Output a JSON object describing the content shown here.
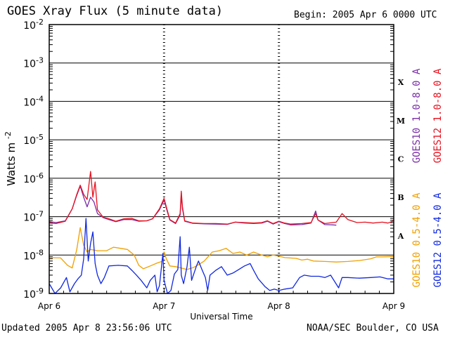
{
  "header": {
    "title": "GOES Xray Flux (5 minute data)",
    "begin": "Begin:  2005 Apr 6 0000 UTC"
  },
  "footer": {
    "updated": "Updated 2005 Apr  8 23:56:06 UTC",
    "credit": "NOAA/SEC Boulder, CO USA"
  },
  "chart_data": {
    "type": "line",
    "title": "GOES Xray Flux (5 minute data)",
    "xlabel": "Universal Time",
    "ylabel": "Watts m",
    "ylabel_sup": "-2",
    "y_scale": "log",
    "ylim": [
      1e-09,
      0.01
    ],
    "y_ticks": [
      {
        "value": 0.01,
        "exp": "-2"
      },
      {
        "value": 0.001,
        "exp": "-3"
      },
      {
        "value": 0.0001,
        "exp": "-4"
      },
      {
        "value": 1e-05,
        "exp": "-5"
      },
      {
        "value": 1e-06,
        "exp": "-6"
      },
      {
        "value": 1e-07,
        "exp": "-7"
      },
      {
        "value": 1e-08,
        "exp": "-8"
      },
      {
        "value": 1e-09,
        "exp": "-9"
      }
    ],
    "xlim": [
      0,
      3
    ],
    "x_ticks": [
      {
        "day": 0,
        "label": "Apr 6"
      },
      {
        "day": 1,
        "label": "Apr 7"
      },
      {
        "day": 2,
        "label": "Apr 8"
      },
      {
        "day": 3,
        "label": "Apr 9"
      }
    ],
    "flare_classes": [
      {
        "label": "X",
        "lo": 0.0001,
        "hi": 0.001
      },
      {
        "label": "M",
        "lo": 1e-05,
        "hi": 0.0001
      },
      {
        "label": "C",
        "lo": 1e-06,
        "hi": 1e-05
      },
      {
        "label": "B",
        "lo": 1e-07,
        "hi": 1e-06
      },
      {
        "label": "A",
        "lo": 1e-08,
        "hi": 1e-07
      }
    ],
    "legend_long": [
      {
        "name": "GOES10 1.0-8.0 A",
        "color": "#7a2ea8"
      },
      {
        "name": "GOES12 1.0-8.0 A",
        "color": "#e8101e"
      }
    ],
    "legend_short": [
      {
        "name": "GOES10 0.5-4.0 A",
        "color": "#f0a000"
      },
      {
        "name": "GOES12 0.5-4.0 A",
        "color": "#1028e0"
      }
    ],
    "series": [
      {
        "name": "GOES10 1.0-8.0 A",
        "color": "#7a2ea8",
        "points": [
          [
            0,
            7.4e-08
          ],
          [
            0.06,
            7e-08
          ],
          [
            0.14,
            7.8e-08
          ],
          [
            0.2,
            1.6e-07
          ],
          [
            0.24,
            3.6e-07
          ],
          [
            0.27,
            6.2e-07
          ],
          [
            0.3,
            3.2e-07
          ],
          [
            0.33,
            1.8e-07
          ],
          [
            0.36,
            3.2e-07
          ],
          [
            0.39,
            2.4e-07
          ],
          [
            0.42,
            1.2e-07
          ],
          [
            0.47,
            9.4e-08
          ],
          [
            0.52,
            8.4e-08
          ],
          [
            0.58,
            7.4e-08
          ],
          [
            0.65,
            8.4e-08
          ],
          [
            0.72,
            8.4e-08
          ],
          [
            0.78,
            7.6e-08
          ],
          [
            0.85,
            7.8e-08
          ],
          [
            0.9,
            8.8e-08
          ],
          [
            0.96,
            1.5e-07
          ],
          [
            1.0,
            2.7e-07
          ],
          [
            1.03,
            1.3e-07
          ],
          [
            1.05,
            8.2e-08
          ],
          [
            1.1,
            6.6e-08
          ],
          [
            1.14,
            1.1e-07
          ],
          [
            1.15,
            3.6e-07
          ],
          [
            1.16,
            1.6e-07
          ],
          [
            1.18,
            7.6e-08
          ],
          [
            1.25,
            6.7e-08
          ],
          [
            1.35,
            6.5e-08
          ],
          [
            1.45,
            6.4e-08
          ],
          [
            1.55,
            6.3e-08
          ],
          [
            1.62,
            7.2e-08
          ],
          [
            1.7,
            6.8e-08
          ],
          [
            1.78,
            6.6e-08
          ],
          [
            1.85,
            6.8e-08
          ],
          [
            1.9,
            7.6e-08
          ],
          [
            1.95,
            6.4e-08
          ],
          [
            2.0,
            7.4e-08
          ],
          [
            2.05,
            6.6e-08
          ],
          [
            2.1,
            6.1e-08
          ],
          [
            2.2,
            6.2e-08
          ],
          [
            2.28,
            6.8e-08
          ],
          [
            2.32,
            1.4e-07
          ],
          [
            2.34,
            8.2e-08
          ],
          [
            2.4,
            6.2e-08
          ],
          [
            2.47,
            6.1e-08
          ],
          [
            2.5,
            6e-08
          ]
        ]
      },
      {
        "name": "GOES12 1.0-8.0 A",
        "color": "#e8101e",
        "points": [
          [
            0,
            6.8e-08
          ],
          [
            0.06,
            6.6e-08
          ],
          [
            0.14,
            7.6e-08
          ],
          [
            0.2,
            1.6e-07
          ],
          [
            0.24,
            3.8e-07
          ],
          [
            0.27,
            6.6e-07
          ],
          [
            0.3,
            3.8e-07
          ],
          [
            0.33,
            2.8e-07
          ],
          [
            0.36,
            1.5e-06
          ],
          [
            0.38,
            3.2e-07
          ],
          [
            0.4,
            8e-07
          ],
          [
            0.42,
            1.5e-07
          ],
          [
            0.47,
            9.6e-08
          ],
          [
            0.52,
            8.8e-08
          ],
          [
            0.58,
            7.6e-08
          ],
          [
            0.65,
            8.8e-08
          ],
          [
            0.72,
            9e-08
          ],
          [
            0.78,
            7.8e-08
          ],
          [
            0.85,
            7.8e-08
          ],
          [
            0.9,
            8.8e-08
          ],
          [
            0.96,
            1.6e-07
          ],
          [
            1.0,
            3e-07
          ],
          [
            1.03,
            1.4e-07
          ],
          [
            1.05,
            8.4e-08
          ],
          [
            1.1,
            6.8e-08
          ],
          [
            1.14,
            1.2e-07
          ],
          [
            1.15,
            4.6e-07
          ],
          [
            1.16,
            1.8e-07
          ],
          [
            1.18,
            7.8e-08
          ],
          [
            1.25,
            6.8e-08
          ],
          [
            1.35,
            6.6e-08
          ],
          [
            1.45,
            6.6e-08
          ],
          [
            1.55,
            6.4e-08
          ],
          [
            1.62,
            7.2e-08
          ],
          [
            1.7,
            7e-08
          ],
          [
            1.78,
            6.8e-08
          ],
          [
            1.85,
            7e-08
          ],
          [
            1.9,
            7.8e-08
          ],
          [
            1.95,
            6.6e-08
          ],
          [
            2.0,
            7.6e-08
          ],
          [
            2.05,
            6.8e-08
          ],
          [
            2.1,
            6.4e-08
          ],
          [
            2.2,
            6.6e-08
          ],
          [
            2.28,
            7e-08
          ],
          [
            2.32,
            1.2e-07
          ],
          [
            2.34,
            8.2e-08
          ],
          [
            2.4,
            6.6e-08
          ],
          [
            2.5,
            7.2e-08
          ],
          [
            2.55,
            1.2e-07
          ],
          [
            2.6,
            8.4e-08
          ],
          [
            2.68,
            7e-08
          ],
          [
            2.75,
            7.2e-08
          ],
          [
            2.82,
            6.8e-08
          ],
          [
            2.9,
            7.2e-08
          ],
          [
            2.95,
            6.8e-08
          ],
          [
            3.0,
            7.8e-08
          ]
        ]
      },
      {
        "name": "GOES10 0.5-4.0 A",
        "color": "#f0a000",
        "points": [
          [
            0,
            8.6e-09
          ],
          [
            0.1,
            8.4e-09
          ],
          [
            0.16,
            5.4e-09
          ],
          [
            0.2,
            4.6e-09
          ],
          [
            0.24,
            1.4e-08
          ],
          [
            0.27,
            5.2e-08
          ],
          [
            0.3,
            1.8e-08
          ],
          [
            0.33,
            1.2e-08
          ],
          [
            0.36,
            1.4e-08
          ],
          [
            0.42,
            1.3e-08
          ],
          [
            0.5,
            1.3e-08
          ],
          [
            0.56,
            1.6e-08
          ],
          [
            0.62,
            1.5e-08
          ],
          [
            0.68,
            1.4e-08
          ],
          [
            0.74,
            1e-08
          ],
          [
            0.78,
            5.4e-09
          ],
          [
            0.82,
            4.4e-09
          ],
          [
            0.88,
            5.2e-09
          ],
          [
            0.94,
            6.2e-09
          ],
          [
            0.98,
            6.8e-09
          ],
          [
            1.0,
            1.2e-08
          ],
          [
            1.02,
            8e-09
          ],
          [
            1.05,
            5.2e-09
          ],
          [
            1.1,
            5e-09
          ],
          [
            1.15,
            4.6e-09
          ],
          [
            1.2,
            4.2e-09
          ],
          [
            1.26,
            4.8e-09
          ],
          [
            1.3,
            5.6e-09
          ],
          [
            1.35,
            7e-09
          ],
          [
            1.42,
            1.2e-08
          ],
          [
            1.48,
            1.3e-08
          ],
          [
            1.54,
            1.5e-08
          ],
          [
            1.6,
            1.1e-08
          ],
          [
            1.66,
            1.2e-08
          ],
          [
            1.72,
            1e-08
          ],
          [
            1.78,
            1.2e-08
          ],
          [
            1.85,
            1e-08
          ],
          [
            1.9,
            9e-09
          ],
          [
            1.95,
            1e-08
          ],
          [
            2.0,
            9.4e-09
          ],
          [
            2.05,
            8.6e-09
          ],
          [
            2.15,
            8.2e-09
          ],
          [
            2.2,
            7.4e-09
          ],
          [
            2.25,
            7.8e-09
          ],
          [
            2.3,
            7e-09
          ],
          [
            2.4,
            6.8e-09
          ],
          [
            2.5,
            6.6e-09
          ],
          [
            2.6,
            6.8e-09
          ],
          [
            2.7,
            7.2e-09
          ],
          [
            2.8,
            8e-09
          ],
          [
            2.85,
            9e-09
          ],
          [
            2.9,
            9e-09
          ],
          [
            3.0,
            9.2e-09
          ]
        ]
      },
      {
        "name": "GOES12 0.5-4.0 A",
        "color": "#1028e0",
        "points": [
          [
            0,
            1.8e-09
          ],
          [
            0.05,
            1e-09
          ],
          [
            0.1,
            1.4e-09
          ],
          [
            0.15,
            2.6e-09
          ],
          [
            0.18,
            1.1e-09
          ],
          [
            0.22,
            1.8e-09
          ],
          [
            0.25,
            2.4e-09
          ],
          [
            0.28,
            3e-09
          ],
          [
            0.3,
            8e-09
          ],
          [
            0.32,
            9e-08
          ],
          [
            0.34,
            7e-09
          ],
          [
            0.36,
            2e-08
          ],
          [
            0.38,
            4e-08
          ],
          [
            0.4,
            6e-09
          ],
          [
            0.42,
            3e-09
          ],
          [
            0.45,
            1.8e-09
          ],
          [
            0.48,
            2.6e-09
          ],
          [
            0.52,
            5.2e-09
          ],
          [
            0.6,
            5.4e-09
          ],
          [
            0.68,
            5.2e-09
          ],
          [
            0.72,
            4e-09
          ],
          [
            0.76,
            3e-09
          ],
          [
            0.8,
            2.2e-09
          ],
          [
            0.85,
            1.4e-09
          ],
          [
            0.88,
            2.2e-09
          ],
          [
            0.92,
            3e-09
          ],
          [
            0.94,
            1.1e-09
          ],
          [
            0.96,
            1.6e-09
          ],
          [
            0.99,
            1.1e-08
          ],
          [
            1.0,
            2.2e-09
          ],
          [
            1.03,
            1e-09
          ],
          [
            1.06,
            1.2e-09
          ],
          [
            1.09,
            3.2e-09
          ],
          [
            1.12,
            4.2e-09
          ],
          [
            1.14,
            3e-08
          ],
          [
            1.15,
            3e-09
          ],
          [
            1.17,
            1.8e-09
          ],
          [
            1.2,
            5e-09
          ],
          [
            1.22,
            1.6e-08
          ],
          [
            1.24,
            2.2e-09
          ],
          [
            1.28,
            5e-09
          ],
          [
            1.3,
            7e-09
          ],
          [
            1.33,
            4.2e-09
          ],
          [
            1.36,
            2.6e-09
          ],
          [
            1.38,
            1.2e-09
          ],
          [
            1.4,
            3e-09
          ],
          [
            1.45,
            4e-09
          ],
          [
            1.5,
            5e-09
          ],
          [
            1.55,
            3e-09
          ],
          [
            1.6,
            3.4e-09
          ],
          [
            1.65,
            4.2e-09
          ],
          [
            1.7,
            5.2e-09
          ],
          [
            1.75,
            6e-09
          ],
          [
            1.78,
            4e-09
          ],
          [
            1.82,
            2.4e-09
          ],
          [
            1.88,
            1.5e-09
          ],
          [
            1.92,
            1.2e-09
          ],
          [
            1.96,
            1.3e-09
          ],
          [
            2.0,
            1.2e-09
          ],
          [
            2.05,
            1.3e-09
          ],
          [
            2.12,
            1.4e-09
          ],
          [
            2.18,
            2.6e-09
          ],
          [
            2.22,
            3e-09
          ],
          [
            2.28,
            2.8e-09
          ],
          [
            2.35,
            2.8e-09
          ],
          [
            2.4,
            2.6e-09
          ],
          [
            2.45,
            3e-09
          ],
          [
            2.52,
            1.4e-09
          ],
          [
            2.55,
            2.6e-09
          ],
          [
            2.6,
            2.6e-09
          ],
          [
            2.7,
            2.5e-09
          ],
          [
            2.8,
            2.6e-09
          ],
          [
            2.88,
            2.7e-09
          ],
          [
            2.95,
            2.4e-09
          ],
          [
            3.0,
            2.4e-09
          ]
        ]
      }
    ],
    "grid": true
  }
}
